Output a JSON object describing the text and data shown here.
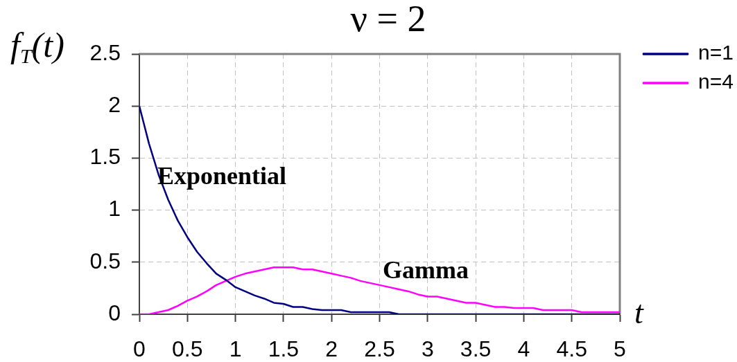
{
  "chart_data": {
    "type": "line",
    "title": "ν = 2",
    "ylabel": "f$_{T}$(t)",
    "xlabel": "t",
    "x": [
      0,
      0.1,
      0.2,
      0.3,
      0.4,
      0.5,
      0.6,
      0.7,
      0.8,
      0.9,
      1,
      1.1,
      1.2,
      1.3,
      1.4,
      1.5,
      1.6,
      1.7,
      1.8,
      1.9,
      2,
      2.1,
      2.2,
      2.3,
      2.4,
      2.5,
      2.6,
      2.7,
      2.8,
      2.9,
      3,
      3.1,
      3.2,
      3.3,
      3.4,
      3.5,
      3.6,
      3.7,
      3.8,
      3.9,
      4,
      4.1,
      4.2,
      4.3,
      4.4,
      4.5,
      4.6,
      4.7,
      4.8,
      4.9,
      5
    ],
    "series": [
      {
        "name": "n=1",
        "color": "#000080",
        "values": [
          2,
          1.64,
          1.34,
          1.1,
          0.9,
          0.74,
          0.6,
          0.49,
          0.39,
          0.33,
          0.26,
          0.22,
          0.18,
          0.15,
          0.11,
          0.1,
          0.07,
          0.07,
          0.05,
          0.04,
          0.04,
          0.04,
          0.02,
          0.02,
          0.02,
          0.02,
          0.02,
          0,
          0,
          0,
          0,
          0,
          0,
          0,
          0,
          0,
          0,
          0,
          0,
          0,
          0,
          0,
          0,
          0,
          0,
          0,
          0,
          0,
          0,
          0,
          0
        ]
      },
      {
        "name": "n=4",
        "color": "#ff00ff",
        "values": [
          0,
          0,
          0.02,
          0.04,
          0.08,
          0.13,
          0.17,
          0.22,
          0.28,
          0.32,
          0.36,
          0.39,
          0.41,
          0.43,
          0.45,
          0.45,
          0.45,
          0.43,
          0.43,
          0.41,
          0.39,
          0.37,
          0.35,
          0.32,
          0.3,
          0.28,
          0.26,
          0.24,
          0.22,
          0.19,
          0.17,
          0.17,
          0.15,
          0.13,
          0.11,
          0.11,
          0.09,
          0.07,
          0.07,
          0.06,
          0.06,
          0.06,
          0.04,
          0.04,
          0.04,
          0.04,
          0.02,
          0.02,
          0.02,
          0.02,
          0.02
        ]
      }
    ],
    "xlim": [
      0,
      5
    ],
    "ylim": [
      0,
      2.5
    ],
    "xticks": [
      0,
      0.5,
      1,
      1.5,
      2,
      2.5,
      3,
      3.5,
      4,
      4.5,
      5
    ],
    "yticks": [
      0,
      0.5,
      1,
      1.5,
      2,
      2.5
    ],
    "grid": true,
    "legend": "top right",
    "annotations": [
      "Exponential",
      "Gamma"
    ]
  }
}
